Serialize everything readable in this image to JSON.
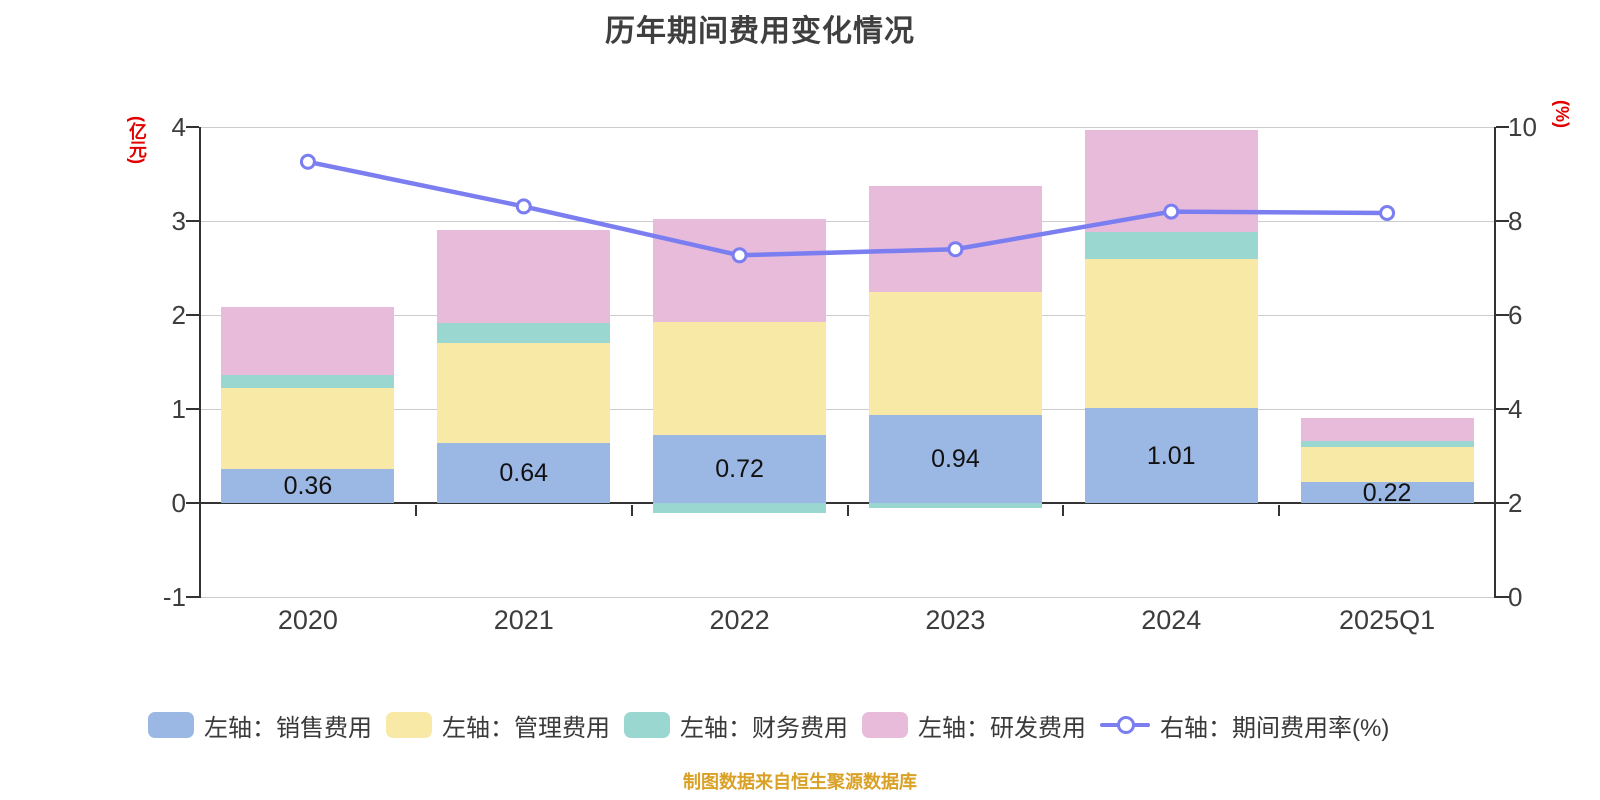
{
  "title": {
    "text": "历年期间费用变化情况"
  },
  "footer": {
    "text": "制图数据来自恒生聚源数据库"
  },
  "colors": {
    "sales_blue": "#9bb7e3",
    "admin_yellow": "#f9e9a6",
    "finance_teal": "#9ad7d1",
    "rnd_pink": "#e8bbdb",
    "rate_line_purple": "#7b7ef0",
    "axis_name_red": "#e00000",
    "footer_orange": "#d9a126",
    "axis_dark": "#333333",
    "grid_gray": "#cccccc"
  },
  "chart_data": {
    "type": "bar",
    "variant": "stacked-bars-with-right-axis-line",
    "title": "历年期间费用变化情况",
    "categories": [
      "2020",
      "2021",
      "2022",
      "2023",
      "2024",
      "2025Q1"
    ],
    "bar_series": [
      {
        "name": "左轴：销售费用",
        "color": "#9bb7e3",
        "values": [
          0.36,
          0.64,
          0.72,
          0.94,
          1.01,
          0.22
        ]
      },
      {
        "name": "左轴：管理费用",
        "color": "#f9e9a6",
        "values": [
          0.86,
          1.06,
          1.21,
          1.3,
          1.59,
          0.38
        ]
      },
      {
        "name": "左轴：财务费用",
        "color": "#9ad7d1",
        "values": [
          0.14,
          0.21,
          -0.11,
          -0.05,
          0.28,
          0.06
        ]
      },
      {
        "name": "左轴：研发费用",
        "color": "#e8bbdb",
        "values": [
          0.72,
          0.99,
          1.09,
          1.13,
          1.09,
          0.24
        ]
      }
    ],
    "line_series": {
      "name": "右轴：期间费用率(%)",
      "color": "#7b7ef0",
      "axis": "right",
      "values": [
        9.26,
        8.31,
        7.27,
        7.4,
        8.2,
        8.17
      ]
    },
    "bar_value_labels": [
      "0.36",
      "0.64",
      "0.72",
      "0.94",
      "1.01",
      "0.22"
    ],
    "left_axis": {
      "name": "(亿元)",
      "min": -1,
      "max": 4,
      "ticks": [
        4,
        3,
        2,
        1,
        0,
        -1
      ]
    },
    "right_axis": {
      "name": "(%)",
      "min": 0,
      "max": 10,
      "ticks": [
        10,
        8,
        6,
        4,
        2,
        0
      ]
    },
    "grid": true,
    "legend_position": "bottom"
  }
}
